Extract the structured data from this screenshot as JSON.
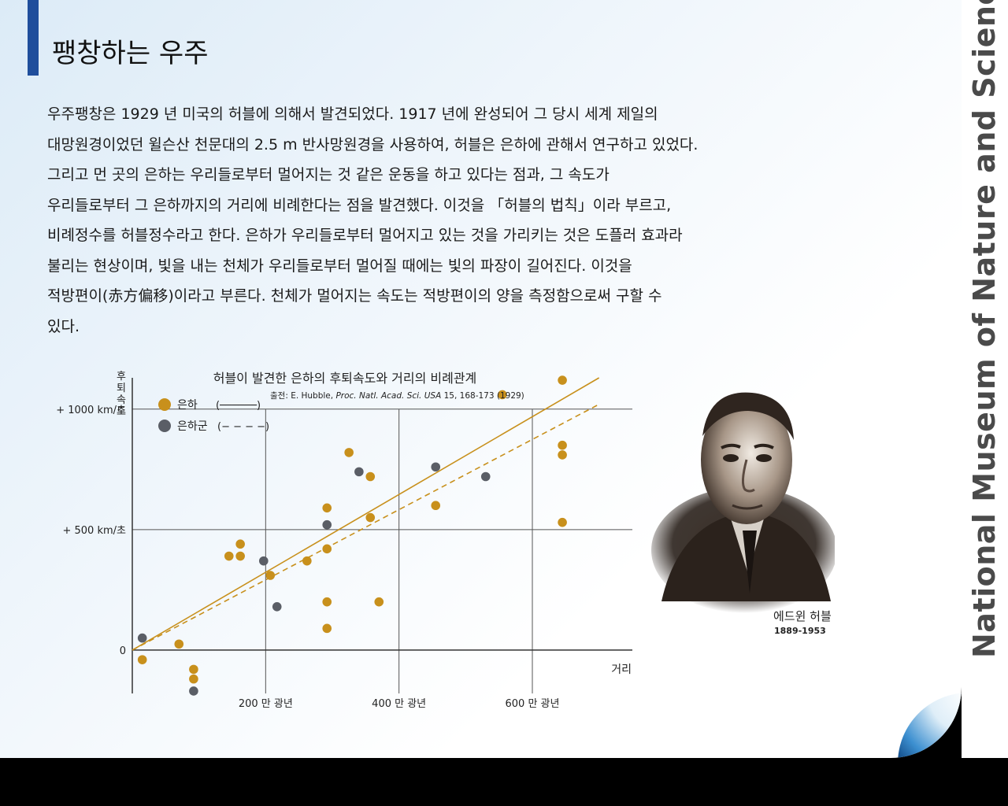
{
  "page": {
    "title": "팽창하는 우주",
    "sidebar_text": "National Museum of Nature and Science",
    "body_lines": [
      "우주팽창은 1929 년 미국의 허블에 의해서 발견되었다. 1917 년에 완성되어 그 당시 세계 제일의",
      "대망원경이었던 윌슨산 천문대의 2.5 m 반사망원경을 사용하여, 허블은 은하에 관해서 연구하고 있었다.",
      "그리고 먼 곳의 은하는 우리들로부터 멀어지는 것 같은 운동을 하고 있다는 점과, 그 속도가",
      "우리들로부터 그 은하까지의 거리에 비례한다는 점을 발견했다. 이것을 「허블의 법칙」이라 부르고,",
      "비례정수를 허블정수라고 한다. 은하가 우리들로부터 멀어지고 있는 것을 가리키는 것은 도플러 효과라",
      "불리는 현상이며, 빛을 내는 천체가 우리들로부터 멀어질 때에는 빛의 파장이 길어진다. 이것을",
      "적방편이(赤方偏移)이라고 부른다. 천체가 멀어지는 속도는 적방편이의 양을 측정함으로써 구할 수",
      "있다."
    ],
    "portrait_name": "에드윈 허블",
    "portrait_years": "1889-1953",
    "colors": {
      "accent": "#1f4e9c",
      "galaxy": "#c8901c",
      "cluster": "#5a5e66"
    }
  },
  "chart_data": {
    "type": "scatter",
    "title": "허블이 발견한 은하의 후퇴속도와 거리의 비례관계",
    "source_prefix": "출전: E. Hubble, ",
    "source_italic": "Proc. Natl. Acad. Sci. USA",
    "source_suffix": " 15, 168-173 (1929)",
    "ylabel": "후퇴속도",
    "xlabel": "거리",
    "xlim": [
      0,
      750
    ],
    "ylim": [
      -180,
      1130
    ],
    "x_ticks": [
      {
        "value": 200,
        "label": "200 만 광년"
      },
      {
        "value": 400,
        "label": "400 만 광년"
      },
      {
        "value": 600,
        "label": "600 만 광년"
      }
    ],
    "y_ticks": [
      {
        "value": 0,
        "label": "0"
      },
      {
        "value": 500,
        "label": "+ 500 km/초"
      },
      {
        "value": 1000,
        "label": "+ 1000 km/초"
      }
    ],
    "legend": {
      "galaxy_label": "은하",
      "galaxy_line": "(──────)",
      "cluster_label": "은하군",
      "cluster_line": "(− − − −)"
    },
    "series": [
      {
        "name": "은하",
        "color": "#c8901c",
        "points": [
          [
            15,
            -40
          ],
          [
            70,
            25
          ],
          [
            92,
            -80
          ],
          [
            92,
            -120
          ],
          [
            145,
            390
          ],
          [
            162,
            390
          ],
          [
            162,
            440
          ],
          [
            207,
            310
          ],
          [
            262,
            370
          ],
          [
            292,
            590
          ],
          [
            292,
            420
          ],
          [
            292,
            200
          ],
          [
            292,
            90
          ],
          [
            325,
            820
          ],
          [
            357,
            720
          ],
          [
            357,
            550
          ],
          [
            370,
            200
          ],
          [
            455,
            600
          ],
          [
            555,
            1060
          ],
          [
            645,
            1120
          ],
          [
            645,
            850
          ],
          [
            645,
            810
          ],
          [
            645,
            530
          ]
        ],
        "fit": [
          [
            0,
            0
          ],
          [
            700,
            1130
          ]
        ]
      },
      {
        "name": "은하군",
        "color": "#5a5e66",
        "points": [
          [
            15,
            50
          ],
          [
            92,
            -170
          ],
          [
            197,
            370
          ],
          [
            217,
            180
          ],
          [
            292,
            520
          ],
          [
            340,
            740
          ],
          [
            455,
            760
          ],
          [
            530,
            720
          ]
        ],
        "fit": [
          [
            0,
            0
          ],
          [
            700,
            1020
          ]
        ]
      }
    ]
  }
}
